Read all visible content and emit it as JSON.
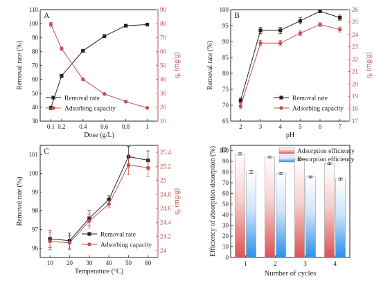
{
  "colors": {
    "black": "#222222",
    "red": "#c0504d",
    "axis_red": "#c0504d"
  },
  "chart_data": [
    {
      "id": "A",
      "type": "line",
      "panel_label": "A",
      "xlabel": "Dose (g/L)",
      "ylabel": "Removal rate (%)",
      "y2label": "qe (mg/g)",
      "x": [
        0.1,
        0.2,
        0.4,
        0.6,
        0.8,
        1.0
      ],
      "xticks": [
        "0.1",
        "0.2",
        "0.4",
        "0.6",
        "0.8",
        "1"
      ],
      "xlim": [
        0.0,
        1.1
      ],
      "ylim": [
        30,
        110
      ],
      "yticks": [
        30,
        40,
        50,
        60,
        70,
        80,
        90,
        100,
        110
      ],
      "y2lim": [
        10,
        90
      ],
      "y2ticks": [
        10,
        20,
        30,
        40,
        50,
        60,
        70,
        80,
        90
      ],
      "series": [
        {
          "name": "Removal rate",
          "axis": "left",
          "color": "#222222",
          "values": [
            39.5,
            62.5,
            80.5,
            91.0,
            98.5,
            99.3
          ],
          "errors": [
            1.2,
            1.2,
            1.0,
            0.8,
            0.5,
            0.4
          ]
        },
        {
          "name": "Adsorbing capacity",
          "axis": "right",
          "color": "#c0504d",
          "values": [
            79.5,
            62.0,
            40.0,
            29.5,
            24.0,
            19.5
          ],
          "errors": [
            1.5,
            1.2,
            0.8,
            0.6,
            0.5,
            0.4
          ]
        }
      ],
      "legend": "bottom-left"
    },
    {
      "id": "B",
      "type": "line",
      "panel_label": "B",
      "xlabel": "pH",
      "ylabel": "Removal rate (%)",
      "y2label": "qe (mg/g)",
      "x": [
        2,
        3,
        4,
        5,
        6,
        7
      ],
      "xticks": [
        "2",
        "3",
        "4",
        "5",
        "6",
        "7"
      ],
      "xlim": [
        1.5,
        7.5
      ],
      "ylim": [
        65,
        100
      ],
      "yticks": [
        65,
        70,
        75,
        80,
        85,
        90,
        95,
        100
      ],
      "y2lim": [
        17,
        26
      ],
      "y2ticks": [
        17,
        18,
        19,
        20,
        21,
        22,
        23,
        24,
        25,
        26
      ],
      "series": [
        {
          "name": "Removal rate",
          "axis": "left",
          "color": "#222222",
          "values": [
            71.5,
            93.5,
            93.5,
            96.5,
            99.5,
            97.5
          ],
          "errors": [
            0.8,
            1.0,
            1.0,
            1.0,
            0.5,
            0.8
          ]
        },
        {
          "name": "Adsorbing capacity",
          "axis": "right",
          "color": "#c0504d",
          "values": [
            18.2,
            23.3,
            23.3,
            24.1,
            24.8,
            24.4
          ],
          "errors": [
            0.2,
            0.2,
            0.2,
            0.2,
            0.15,
            0.2
          ]
        }
      ],
      "legend": "bottom-right"
    },
    {
      "id": "C",
      "type": "line",
      "panel_label": "C",
      "xlabel": "Temperature (°C)",
      "ylabel": "Removal rate (%)",
      "y2label": "qe (mg/g)",
      "x": [
        10,
        20,
        30,
        40,
        50,
        60
      ],
      "xticks": [
        "10",
        "20",
        "30",
        "40",
        "50",
        "60"
      ],
      "xlim": [
        5,
        65
      ],
      "ylim": [
        95.5,
        101.5
      ],
      "yticks": [
        96,
        97,
        98,
        99,
        100,
        101
      ],
      "y2lim": [
        23.9,
        25.5
      ],
      "y2ticks": [
        24.0,
        24.2,
        24.4,
        24.6,
        24.8,
        25.0,
        25.2,
        25.4
      ],
      "series": [
        {
          "name": "Removal rate",
          "axis": "left",
          "color": "#222222",
          "values": [
            96.5,
            96.4,
            97.6,
            98.6,
            100.9,
            100.7
          ],
          "errors": [
            0.45,
            0.4,
            0.4,
            0.2,
            0.55,
            0.5
          ]
        },
        {
          "name": "Adsorbing capacity",
          "axis": "right",
          "color": "#c0504d",
          "values": [
            24.13,
            24.11,
            24.42,
            24.66,
            25.22,
            25.18
          ],
          "errors": [
            0.12,
            0.1,
            0.1,
            0.05,
            0.14,
            0.13
          ]
        }
      ],
      "legend": "bottom-right"
    },
    {
      "id": "D",
      "type": "bar",
      "panel_label": "D",
      "xlabel": "Number of cycles",
      "ylabel": "Efficiency of absorption-desorption (%)",
      "categories": [
        "1",
        "2",
        "3",
        "4"
      ],
      "ylim": [
        0,
        105
      ],
      "yticks": [
        0,
        10,
        20,
        30,
        40,
        50,
        60,
        70,
        80,
        90,
        100
      ],
      "series": [
        {
          "name": "Adsorption efficiency",
          "color": "#e05050",
          "values": [
            97.0,
            94.0,
            92.0,
            88.0
          ],
          "errors": [
            1.0,
            0.8,
            0.9,
            0.9
          ]
        },
        {
          "name": "Desorption efficiency",
          "color": "#2a8fe8",
          "values": [
            80.0,
            78.5,
            75.5,
            73.5
          ],
          "errors": [
            1.2,
            1.0,
            0.9,
            1.0
          ]
        }
      ],
      "legend": "top-right"
    }
  ]
}
